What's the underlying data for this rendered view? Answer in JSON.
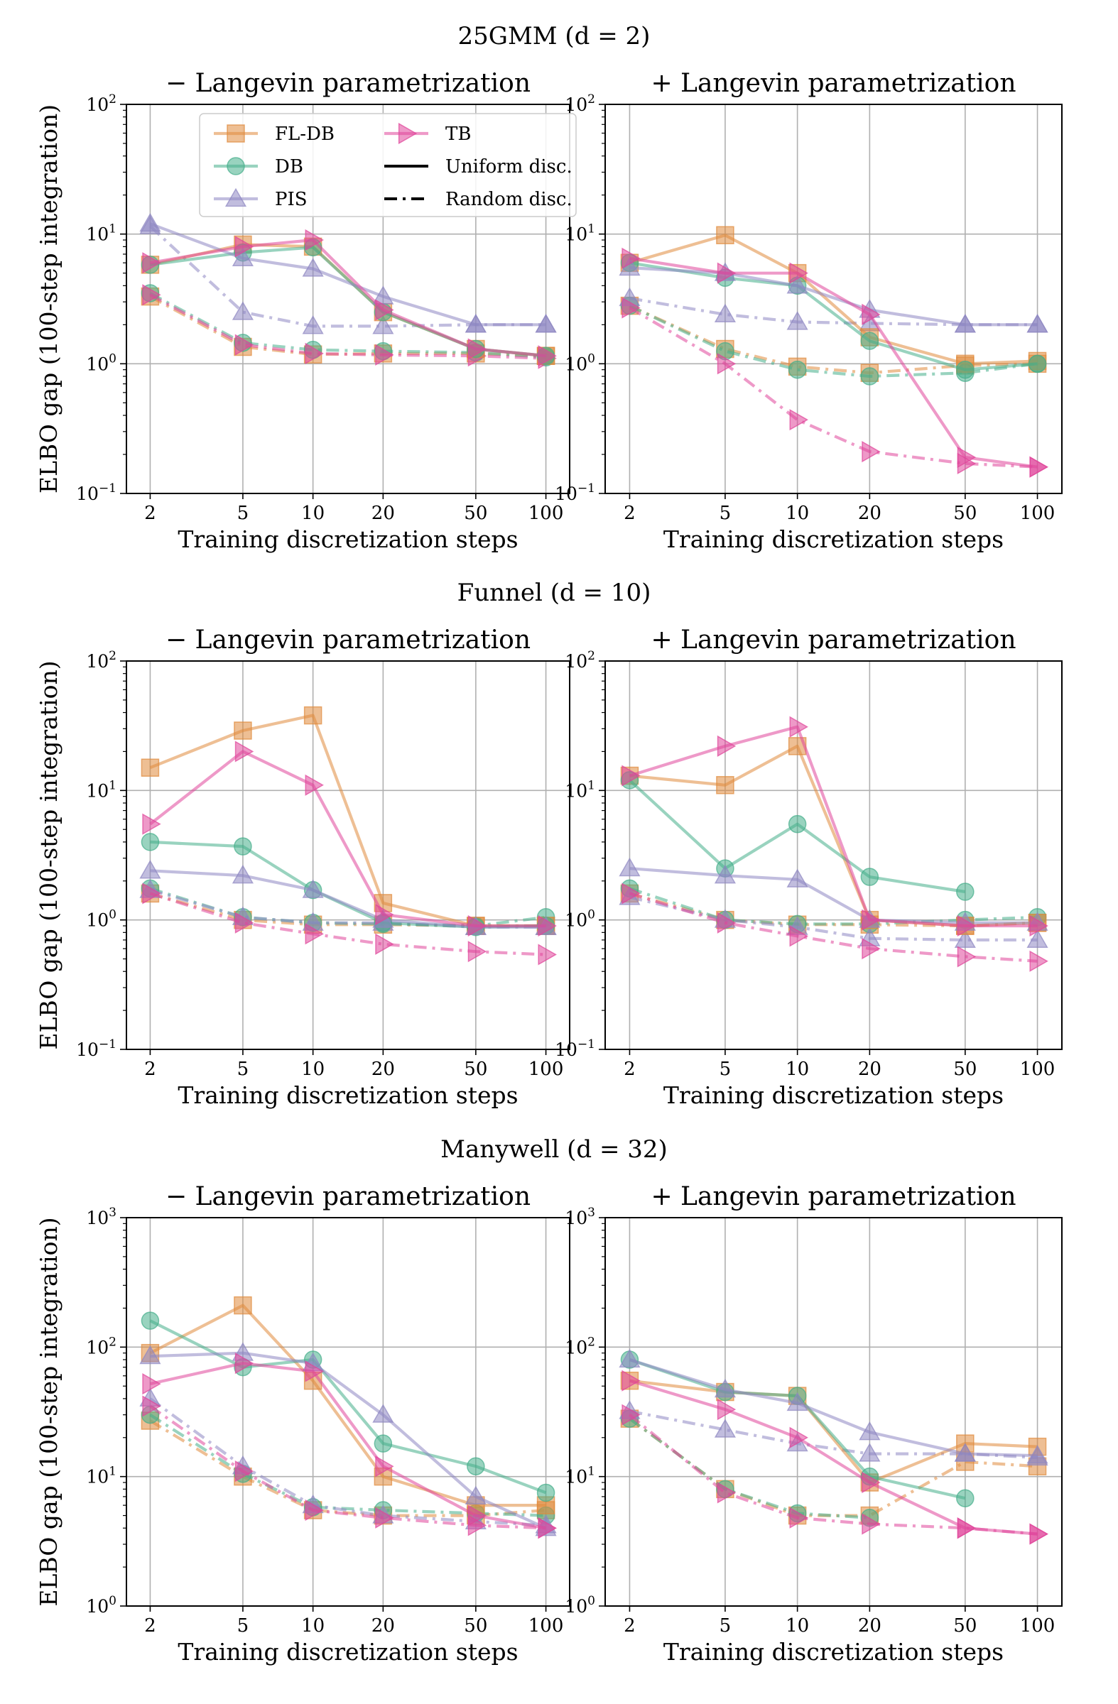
{
  "figure": {
    "group_titles": [
      "25GMM (d = 2)",
      "Funnel (d = 10)",
      "Manywell (d = 32)"
    ],
    "panel_titles": [
      "− Langevin parametrization",
      "+ Langevin parametrization"
    ],
    "xlabel": "Training discretization steps",
    "ylabel": "ELBO gap (100-step integration)",
    "legend": {
      "entries": [
        "FL-DB",
        "DB",
        "PIS",
        "TB"
      ],
      "styles": [
        "Uniform disc.",
        "Random disc."
      ]
    }
  },
  "colors": {
    "FL-DB": "#E08A3C",
    "DB": "#45AE8A",
    "PIS": "#8E87C2",
    "TB": "#E0459A"
  },
  "chart_data": [
    {
      "type": "line",
      "title": "25GMM (d = 2) — − Langevin parametrization",
      "xlabel": "Training discretization steps",
      "ylabel": "ELBO gap (100-step integration)",
      "x": [
        2,
        5,
        10,
        20,
        50,
        100
      ],
      "x_scale": "log",
      "y_scale": "log",
      "ylim": [
        0.1,
        100
      ],
      "grid": true,
      "legend_placement": "top-left",
      "series": [
        {
          "name": "FL-DB",
          "style": "Uniform disc.",
          "values": [
            5.8,
            8.3,
            8.0,
            2.5,
            1.3,
            1.15
          ]
        },
        {
          "name": "DB",
          "style": "Uniform disc.",
          "values": [
            5.8,
            7.2,
            7.9,
            2.5,
            1.3,
            1.15
          ]
        },
        {
          "name": "PIS",
          "style": "Uniform disc.",
          "values": [
            12.0,
            6.5,
            5.4,
            3.3,
            2.0,
            2.0
          ]
        },
        {
          "name": "TB",
          "style": "Uniform disc.",
          "values": [
            6.0,
            8.0,
            9.0,
            2.6,
            1.3,
            1.15
          ]
        },
        {
          "name": "FL-DB",
          "style": "Random disc.",
          "values": [
            3.3,
            1.35,
            1.18,
            1.2,
            1.2,
            1.15
          ]
        },
        {
          "name": "DB",
          "style": "Random disc.",
          "values": [
            3.5,
            1.45,
            1.28,
            1.25,
            1.22,
            1.12
          ]
        },
        {
          "name": "PIS",
          "style": "Random disc.",
          "values": [
            11.5,
            2.5,
            1.95,
            1.95,
            2.0,
            2.0
          ]
        },
        {
          "name": "TB",
          "style": "Random disc.",
          "values": [
            3.4,
            1.4,
            1.2,
            1.17,
            1.15,
            1.1
          ]
        }
      ]
    },
    {
      "type": "line",
      "title": "25GMM (d = 2) — + Langevin parametrization",
      "xlabel": "Training discretization steps",
      "ylabel": "",
      "x": [
        2,
        5,
        10,
        20,
        50,
        100
      ],
      "x_scale": "log",
      "y_scale": "log",
      "ylim": [
        0.1,
        100
      ],
      "grid": true,
      "series": [
        {
          "name": "FL-DB",
          "style": "Uniform disc.",
          "values": [
            6.0,
            9.8,
            5.0,
            1.6,
            1.0,
            1.05
          ]
        },
        {
          "name": "DB",
          "style": "Uniform disc.",
          "values": [
            6.0,
            4.6,
            4.0,
            1.5,
            0.9,
            1.0
          ]
        },
        {
          "name": "PIS",
          "style": "Uniform disc.",
          "values": [
            5.5,
            5.0,
            4.0,
            2.6,
            2.0,
            2.0
          ]
        },
        {
          "name": "TB",
          "style": "Uniform disc.",
          "values": [
            6.5,
            5.0,
            5.0,
            2.4,
            0.19,
            0.16
          ]
        },
        {
          "name": "FL-DB",
          "style": "Random disc.",
          "values": [
            2.8,
            1.3,
            0.95,
            0.85,
            0.97,
            1.0
          ]
        },
        {
          "name": "DB",
          "style": "Random disc.",
          "values": [
            2.8,
            1.25,
            0.9,
            0.8,
            0.85,
            1.0
          ]
        },
        {
          "name": "PIS",
          "style": "Random disc.",
          "values": [
            3.2,
            2.4,
            2.1,
            2.05,
            2.0,
            2.0
          ]
        },
        {
          "name": "TB",
          "style": "Random disc.",
          "values": [
            2.7,
            1.0,
            0.37,
            0.21,
            0.17,
            0.16
          ]
        }
      ]
    },
    {
      "type": "line",
      "title": "Funnel (d = 10) — − Langevin parametrization",
      "xlabel": "Training discretization steps",
      "ylabel": "ELBO gap (100-step integration)",
      "x": [
        2,
        5,
        10,
        20,
        50,
        100
      ],
      "x_scale": "log",
      "y_scale": "log",
      "ylim": [
        0.1,
        100
      ],
      "grid": true,
      "series": [
        {
          "name": "FL-DB",
          "style": "Uniform disc.",
          "values": [
            15.0,
            29.0,
            38.0,
            1.35,
            0.9,
            0.9
          ]
        },
        {
          "name": "DB",
          "style": "Uniform disc.",
          "values": [
            4.0,
            3.7,
            1.7,
            0.95,
            0.88,
            0.9
          ]
        },
        {
          "name": "PIS",
          "style": "Uniform disc.",
          "values": [
            2.4,
            2.2,
            1.7,
            1.0,
            0.88,
            0.88
          ]
        },
        {
          "name": "TB",
          "style": "Uniform disc.",
          "values": [
            5.5,
            20.0,
            11.0,
            1.1,
            0.9,
            0.9
          ]
        },
        {
          "name": "FL-DB",
          "style": "Random disc.",
          "values": [
            1.6,
            1.0,
            0.92,
            0.92,
            0.9,
            0.9
          ]
        },
        {
          "name": "DB",
          "style": "Random disc.",
          "values": [
            1.75,
            1.05,
            0.95,
            0.93,
            0.9,
            1.05
          ]
        },
        {
          "name": "PIS",
          "style": "Random disc.",
          "values": [
            1.7,
            1.05,
            0.95,
            0.95,
            0.88,
            0.88
          ]
        },
        {
          "name": "TB",
          "style": "Random disc.",
          "values": [
            1.6,
            0.95,
            0.78,
            0.65,
            0.57,
            0.54
          ]
        }
      ]
    },
    {
      "type": "line",
      "title": "Funnel (d = 10) — + Langevin parametrization",
      "xlabel": "Training discretization steps",
      "ylabel": "",
      "x": [
        2,
        5,
        10,
        20,
        50,
        100
      ],
      "x_scale": "log",
      "y_scale": "log",
      "ylim": [
        0.1,
        100
      ],
      "grid": true,
      "series": [
        {
          "name": "FL-DB",
          "style": "Uniform disc.",
          "values": [
            13.0,
            11.0,
            22.0,
            1.0,
            0.9,
            0.95
          ]
        },
        {
          "name": "DB",
          "style": "Uniform disc.",
          "values": [
            12.0,
            2.5,
            5.5,
            2.15,
            1.65,
            null
          ]
        },
        {
          "name": "PIS",
          "style": "Uniform disc.",
          "values": [
            2.5,
            2.2,
            2.05,
            1.0,
            0.95,
            0.95
          ]
        },
        {
          "name": "TB",
          "style": "Uniform disc.",
          "values": [
            13.0,
            22.0,
            31.0,
            1.0,
            0.9,
            0.9
          ]
        },
        {
          "name": "FL-DB",
          "style": "Random disc.",
          "values": [
            1.6,
            1.0,
            0.92,
            0.92,
            0.9,
            0.95
          ]
        },
        {
          "name": "DB",
          "style": "Random disc.",
          "values": [
            1.75,
            1.0,
            0.93,
            0.93,
            1.0,
            1.05
          ]
        },
        {
          "name": "PIS",
          "style": "Random disc.",
          "values": [
            1.5,
            1.0,
            0.88,
            0.72,
            0.7,
            0.7
          ]
        },
        {
          "name": "TB",
          "style": "Random disc.",
          "values": [
            1.6,
            0.95,
            0.75,
            0.6,
            0.52,
            0.48
          ]
        }
      ]
    },
    {
      "type": "line",
      "title": "Manywell (d = 32) — − Langevin parametrization",
      "xlabel": "Training discretization steps",
      "ylabel": "ELBO gap (100-step integration)",
      "x": [
        2,
        5,
        10,
        20,
        50,
        100
      ],
      "x_scale": "log",
      "y_scale": "log",
      "ylim": [
        1,
        1000
      ],
      "grid": true,
      "series": [
        {
          "name": "FL-DB",
          "style": "Uniform disc.",
          "values": [
            90.0,
            210.0,
            55.0,
            10.0,
            6.0,
            6.0
          ]
        },
        {
          "name": "DB",
          "style": "Uniform disc.",
          "values": [
            160.0,
            70.0,
            80.0,
            18.0,
            12.0,
            7.5
          ]
        },
        {
          "name": "PIS",
          "style": "Uniform disc.",
          "values": [
            85.0,
            90.0,
            75.0,
            30.0,
            7.0,
            4.0
          ]
        },
        {
          "name": "TB",
          "style": "Uniform disc.",
          "values": [
            52.0,
            75.0,
            65.0,
            12.0,
            5.0,
            4.0
          ]
        },
        {
          "name": "FL-DB",
          "style": "Random disc.",
          "values": [
            27.0,
            10.0,
            5.5,
            5.0,
            5.0,
            5.5
          ]
        },
        {
          "name": "DB",
          "style": "Random disc.",
          "values": [
            30.0,
            10.5,
            5.8,
            5.5,
            5.2,
            5.0
          ]
        },
        {
          "name": "PIS",
          "style": "Random disc.",
          "values": [
            40.0,
            12.0,
            6.0,
            5.0,
            4.5,
            4.2
          ]
        },
        {
          "name": "TB",
          "style": "Random disc.",
          "values": [
            35.0,
            11.0,
            5.5,
            4.8,
            4.2,
            4.0
          ]
        }
      ]
    },
    {
      "type": "line",
      "title": "Manywell (d = 32) — + Langevin parametrization",
      "xlabel": "Training discretization steps",
      "ylabel": "",
      "x": [
        2,
        5,
        10,
        20,
        50,
        100
      ],
      "x_scale": "log",
      "y_scale": "log",
      "ylim": [
        1,
        1000
      ],
      "grid": true,
      "series": [
        {
          "name": "FL-DB",
          "style": "Uniform disc.",
          "values": [
            55.0,
            45.0,
            42.0,
            9.0,
            18.0,
            17.0
          ]
        },
        {
          "name": "DB",
          "style": "Uniform disc.",
          "values": [
            80.0,
            45.0,
            42.0,
            10.0,
            6.8,
            null
          ]
        },
        {
          "name": "PIS",
          "style": "Uniform disc.",
          "values": [
            80.0,
            47.0,
            37.0,
            22.0,
            15.0,
            14.5
          ]
        },
        {
          "name": "TB",
          "style": "Uniform disc.",
          "values": [
            55.0,
            33.0,
            20.0,
            9.0,
            4.0,
            3.6
          ]
        },
        {
          "name": "FL-DB",
          "style": "Random disc.",
          "values": [
            28.0,
            8.0,
            5.0,
            5.0,
            13.0,
            12.0
          ]
        },
        {
          "name": "DB",
          "style": "Random disc.",
          "values": [
            28.0,
            8.0,
            5.2,
            4.8,
            null,
            null
          ]
        },
        {
          "name": "PIS",
          "style": "Random disc.",
          "values": [
            32.0,
            23.0,
            18.0,
            15.0,
            15.0,
            14.0
          ]
        },
        {
          "name": "TB",
          "style": "Random disc.",
          "values": [
            30.0,
            7.5,
            4.8,
            4.3,
            4.0,
            3.6
          ]
        }
      ]
    }
  ]
}
